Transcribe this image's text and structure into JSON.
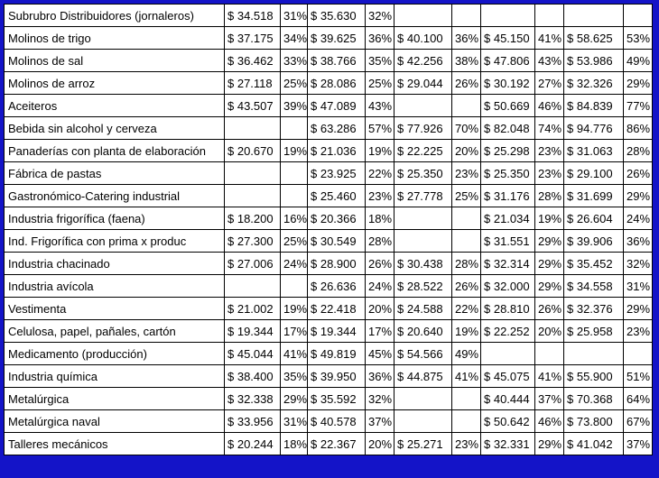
{
  "table": {
    "rows": [
      [
        "Subrubro Distribuidores (jornaleros)",
        "$ 34.518",
        "31%",
        "$ 35.630",
        "32%",
        null,
        null,
        null,
        null,
        null,
        null
      ],
      [
        "Molinos de trigo",
        "$ 37.175",
        "34%",
        "$ 39.625",
        "36%",
        "$ 40.100",
        "36%",
        "$ 45.150",
        "41%",
        "$ 58.625",
        "53%"
      ],
      [
        "Molinos de sal",
        "$ 36.462",
        "33%",
        "$ 38.766",
        "35%",
        "$ 42.256",
        "38%",
        "$ 47.806",
        "43%",
        "$ 53.986",
        "49%"
      ],
      [
        "Molinos de arroz",
        "$ 27.118",
        "25%",
        "$ 28.086",
        "25%",
        "$ 29.044",
        "26%",
        "$ 30.192",
        "27%",
        "$ 32.326",
        "29%"
      ],
      [
        "Aceiteros",
        "$ 43.507",
        "39%",
        "$ 47.089",
        "43%",
        null,
        null,
        "$ 50.669",
        "46%",
        "$ 84.839",
        "77%"
      ],
      [
        "Bebida sin alcohol y cerveza",
        null,
        null,
        "$ 63.286",
        "57%",
        "$ 77.926",
        "70%",
        "$ 82.048",
        "74%",
        "$ 94.776",
        "86%"
      ],
      [
        "Panaderías con planta de elaboración",
        "$ 20.670",
        "19%",
        "$ 21.036",
        "19%",
        "$ 22.225",
        "20%",
        "$ 25.298",
        "23%",
        "$ 31.063",
        "28%"
      ],
      [
        "Fábrica de pastas",
        null,
        null,
        "$ 23.925",
        "22%",
        "$ 25.350",
        "23%",
        "$ 25.350",
        "23%",
        "$ 29.100",
        "26%"
      ],
      [
        "Gastronómico-Catering industrial",
        null,
        null,
        "$ 25.460",
        "23%",
        "$ 27.778",
        "25%",
        "$ 31.176",
        "28%",
        "$ 31.699",
        "29%"
      ],
      [
        "Industria frigorífica (faena)",
        "$ 18.200",
        "16%",
        "$ 20.366",
        "18%",
        null,
        null,
        "$ 21.034",
        "19%",
        "$ 26.604",
        "24%"
      ],
      [
        "Ind. Frigorífica con prima x produc",
        "$ 27.300",
        "25%",
        "$ 30.549",
        "28%",
        null,
        null,
        "$ 31.551",
        "29%",
        "$ 39.906",
        "36%"
      ],
      [
        "Industria chacinado",
        "$ 27.006",
        "24%",
        "$ 28.900",
        "26%",
        "$ 30.438",
        "28%",
        "$ 32.314",
        "29%",
        "$ 35.452",
        "32%"
      ],
      [
        "Industria avícola",
        null,
        null,
        "$ 26.636",
        "24%",
        "$ 28.522",
        "26%",
        "$ 32.000",
        "29%",
        "$ 34.558",
        "31%"
      ],
      [
        "Vestimenta",
        "$ 21.002",
        "19%",
        "$ 22.418",
        "20%",
        "$ 24.588",
        "22%",
        "$ 28.810",
        "26%",
        "$ 32.376",
        "29%"
      ],
      [
        "Celulosa, papel, pañales, cartón",
        "$ 19.344",
        "17%",
        "$ 19.344",
        "17%",
        "$ 20.640",
        "19%",
        "$ 22.252",
        "20%",
        "$ 25.958",
        "23%"
      ],
      [
        "Medicamento (producción)",
        "$ 45.044",
        "41%",
        "$ 49.819",
        "45%",
        "$ 54.566",
        "49%",
        null,
        null,
        null,
        null
      ],
      [
        "Industria química",
        "$ 38.400",
        "35%",
        "$ 39.950",
        "36%",
        "$ 44.875",
        "41%",
        "$ 45.075",
        "41%",
        "$ 55.900",
        "51%"
      ],
      [
        "Metalúrgica",
        "$ 32.338",
        "29%",
        "$ 35.592",
        "32%",
        null,
        null,
        "$ 40.444",
        "37%",
        "$ 70.368",
        "64%"
      ],
      [
        "Metalúrgica naval",
        "$ 33.956",
        "31%",
        "$ 40.578",
        "37%",
        null,
        null,
        "$ 50.642",
        "46%",
        "$ 73.800",
        "67%"
      ],
      [
        "Talleres mecánicos",
        "$ 20.244",
        "18%",
        "$ 22.367",
        "20%",
        "$ 25.271",
        "23%",
        "$ 32.331",
        "29%",
        "$ 41.042",
        "37%"
      ]
    ]
  }
}
